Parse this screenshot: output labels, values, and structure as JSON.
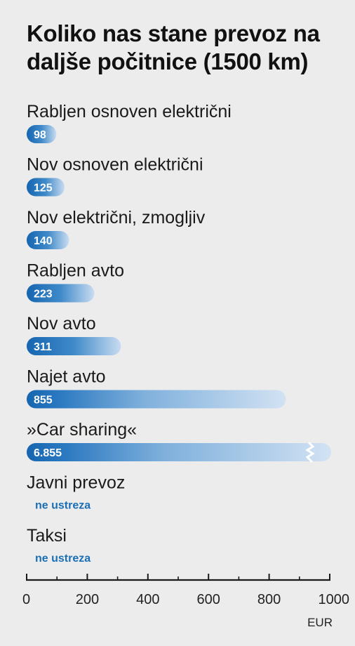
{
  "chart_data": {
    "type": "bar",
    "orientation": "horizontal",
    "title": "Koliko nas stane prevoz na daljše počitnice (1500 km)",
    "categories": [
      "Rabljen osnoven električni",
      "Nov osnoven električni",
      "Nov električni, zmogljiv",
      "Rabljen avto",
      "Nov avto",
      "Najet avto",
      "»Car sharing«",
      "Javni prevoz",
      "Taksi"
    ],
    "values": [
      98,
      125,
      140,
      223,
      311,
      855,
      6855,
      null,
      null
    ],
    "value_labels": [
      "98",
      "125",
      "140",
      "223",
      "311",
      "855",
      "6.855",
      "ne ustreza",
      "ne ustreza"
    ],
    "broken_bar": [
      false,
      false,
      false,
      false,
      false,
      false,
      true,
      false,
      false
    ],
    "xlim": [
      0,
      1000
    ],
    "xticks": [
      "0",
      "200",
      "400",
      "600",
      "800",
      "1000"
    ],
    "xtick_values": [
      0,
      200,
      400,
      600,
      800,
      1000
    ],
    "xlabel": "EUR",
    "grid": false
  },
  "colors": {
    "background": "#ececec",
    "bar_dark": "#1565b0",
    "bar_mid": "#6fa6d8",
    "bar_light": "#cfe0f3",
    "na_text": "#1a6fb5"
  }
}
